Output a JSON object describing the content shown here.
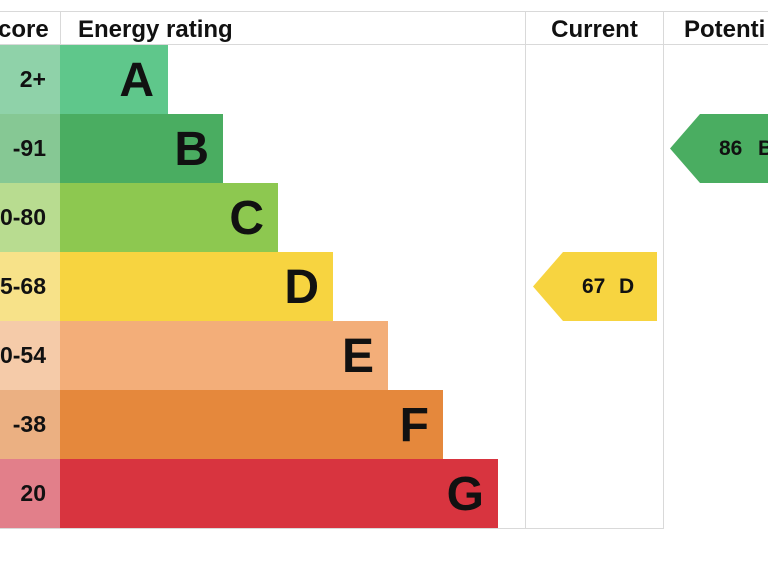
{
  "headers": {
    "score": "core",
    "rating": "Energy rating",
    "current": "Current",
    "potential": "Potenti"
  },
  "bands": [
    {
      "letter": "A",
      "score": "2+",
      "color": "#5fc78b",
      "score_bg": "#8fd2a9"
    },
    {
      "letter": "B",
      "score": "-91",
      "color": "#4aad61",
      "score_bg": "#86c894"
    },
    {
      "letter": "C",
      "score": "0-80",
      "color": "#8dc850",
      "score_bg": "#b8dc90"
    },
    {
      "letter": "D",
      "score": "5-68",
      "color": "#f7d440",
      "score_bg": "#f7e289"
    },
    {
      "letter": "E",
      "score": "0-54",
      "color": "#f3ae79",
      "score_bg": "#f5cba9"
    },
    {
      "letter": "F",
      "score": "-38",
      "color": "#e5883c",
      "score_bg": "#ebb082"
    },
    {
      "letter": "G",
      "score": "20",
      "color": "#d8343f",
      "score_bg": "#e27f8a"
    }
  ],
  "current": {
    "value": "67",
    "letter": "D",
    "band": "D",
    "color": "#f7d440"
  },
  "potential": {
    "value": "86",
    "letter": "B",
    "band": "B",
    "color": "#4aad61"
  },
  "chart_data": {
    "type": "bar",
    "categories": [
      "A",
      "B",
      "C",
      "D",
      "E",
      "F",
      "G"
    ],
    "score_ranges": [
      "2+",
      "-91",
      "0-80",
      "5-68",
      "0-54",
      "-38",
      "20"
    ],
    "current": {
      "value": 67,
      "band": "D"
    },
    "potential": {
      "value": 86,
      "band": "B"
    }
  }
}
